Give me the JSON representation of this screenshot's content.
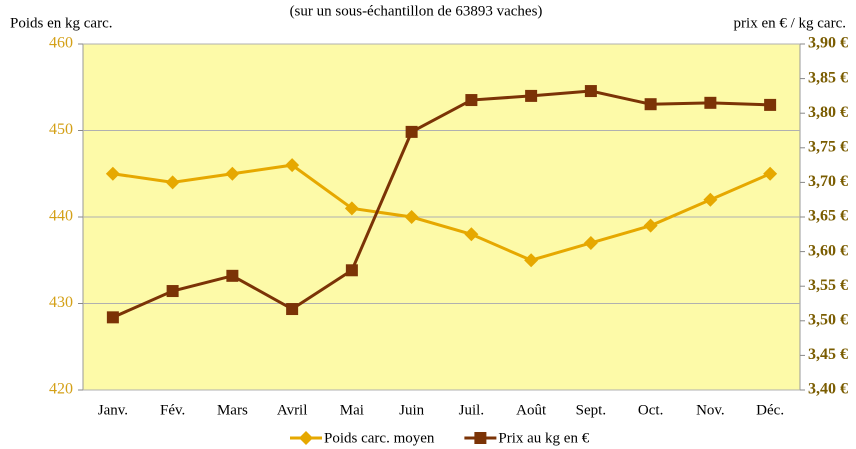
{
  "chart_data": {
    "type": "line",
    "title": "(sur un sous-échantillon de 63893 vaches)",
    "ylabel": "Poids en kg carc.",
    "y2label": "prix en € / kg carc.",
    "categories": [
      "Janv.",
      "Fév.",
      "Mars",
      "Avril",
      "Mai",
      "Juin",
      "Juil.",
      "Août",
      "Sept.",
      "Oct.",
      "Nov.",
      "Déc."
    ],
    "series": [
      {
        "name": "Poids carc. moyen",
        "color": "#e6a800",
        "marker": "diamond",
        "values": [
          445,
          444,
          445,
          446,
          441,
          440,
          438,
          435,
          437,
          439,
          442,
          445
        ]
      },
      {
        "name": "Prix au kg en €",
        "color": "#7b3306",
        "marker": "square",
        "axis": "y2",
        "values": [
          3.505,
          3.543,
          3.565,
          3.517,
          3.573,
          3.773,
          3.819,
          3.825,
          3.832,
          3.813,
          3.815,
          3.812
        ]
      }
    ],
    "ylim": [
      420,
      460
    ],
    "yticks": [
      420,
      430,
      440,
      450,
      460
    ],
    "y2lim": [
      3.4,
      3.9
    ],
    "y2ticks": [
      {
        "value": 3.4,
        "label": "3,40 €"
      },
      {
        "value": 3.45,
        "label": "3,45 €"
      },
      {
        "value": 3.5,
        "label": "3,50 €"
      },
      {
        "value": 3.55,
        "label": "3,55 €"
      },
      {
        "value": 3.6,
        "label": "3,60 €"
      },
      {
        "value": 3.65,
        "label": "3,65 €"
      },
      {
        "value": 3.7,
        "label": "3,70 €"
      },
      {
        "value": 3.75,
        "label": "3,75 €"
      },
      {
        "value": 3.8,
        "label": "3,80 €"
      },
      {
        "value": 3.85,
        "label": "3,85 €"
      },
      {
        "value": 3.9,
        "label": "3,90 €"
      }
    ],
    "grid": true,
    "legend": "bottom",
    "background": "#fdfaa8"
  }
}
